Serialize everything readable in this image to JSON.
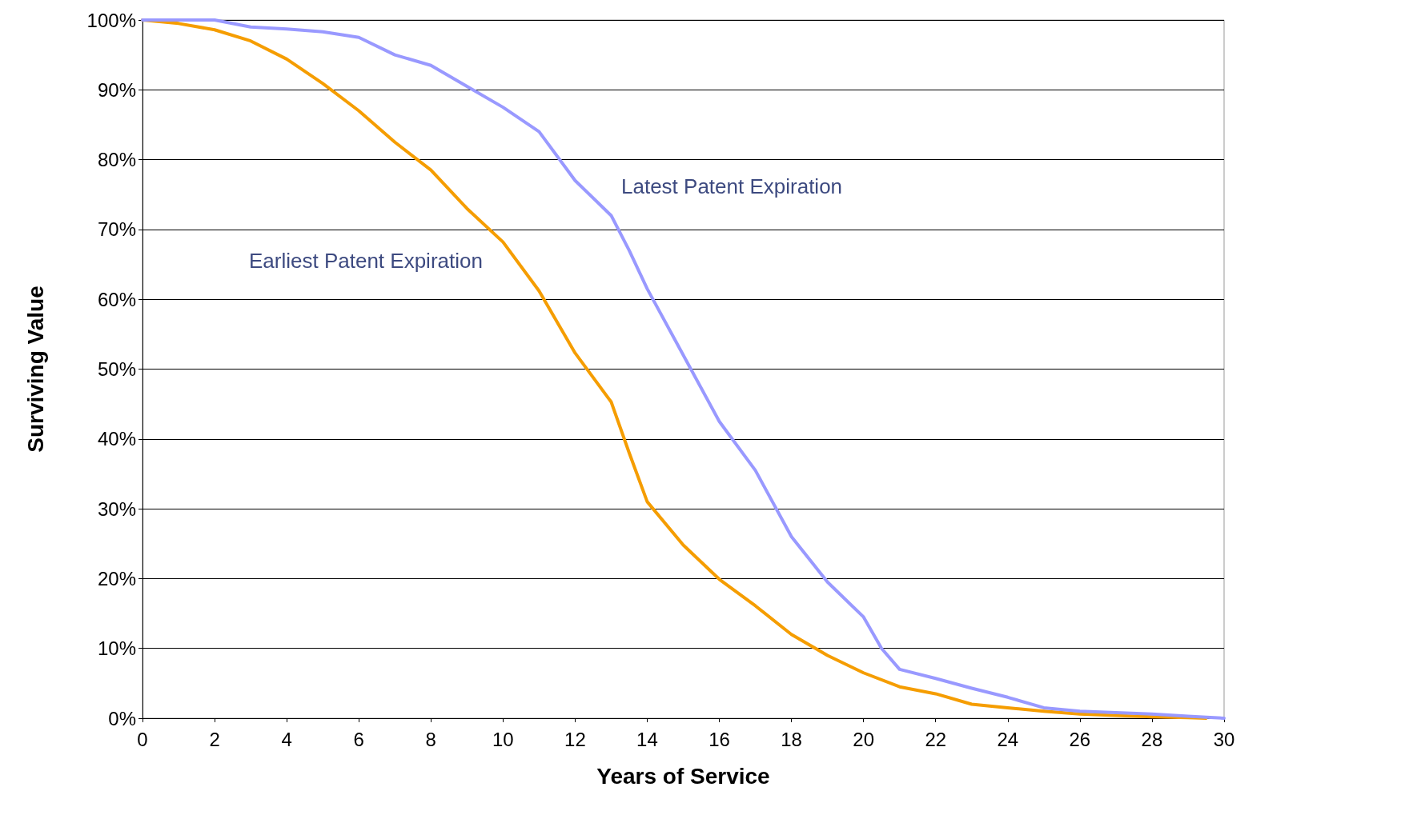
{
  "chart_data": {
    "type": "line",
    "xlabel": "Years of Service",
    "ylabel": "Surviving Value",
    "xlim": [
      0,
      30
    ],
    "xticks": [
      0,
      2,
      4,
      6,
      8,
      10,
      12,
      14,
      16,
      18,
      20,
      22,
      24,
      26,
      28,
      30
    ],
    "ylim": [
      0,
      100
    ],
    "yticks": [
      {
        "value": 0,
        "label": "0%"
      },
      {
        "value": 10,
        "label": "10%"
      },
      {
        "value": 20,
        "label": "20%"
      },
      {
        "value": 30,
        "label": "30%"
      },
      {
        "value": 40,
        "label": "40%"
      },
      {
        "value": 50,
        "label": "50%"
      },
      {
        "value": 60,
        "label": "60%"
      },
      {
        "value": 70,
        "label": "70%"
      },
      {
        "value": 80,
        "label": "80%"
      },
      {
        "value": 90,
        "label": "90%"
      },
      {
        "value": 100,
        "label": "100%"
      }
    ],
    "grid": "y",
    "legend": false,
    "marker": "none",
    "line_style": "solid",
    "series": [
      {
        "name": "Earliest Patent Expiration",
        "color": "#f59d00",
        "x": [
          0,
          1,
          2,
          3,
          4,
          5,
          6,
          7,
          8,
          9,
          10,
          11,
          12,
          13,
          13.5,
          14,
          15,
          16,
          17,
          18,
          19,
          20,
          21,
          22,
          23,
          24,
          25,
          26,
          27,
          28,
          29,
          29.5
        ],
        "values": [
          100,
          99.5,
          98.6,
          97,
          94.4,
          90.9,
          87,
          82.5,
          78.5,
          73,
          68.2,
          61.2,
          52.3,
          45.3,
          38,
          31,
          24.8,
          19.9,
          16.1,
          12,
          9,
          6.5,
          4.5,
          3.5,
          2,
          1.5,
          1,
          0.6,
          0.4,
          0.2,
          0.1,
          0
        ]
      },
      {
        "name": "Latest Patent Expiration",
        "color": "#9999ff",
        "x": [
          0,
          1,
          2,
          3,
          4,
          5,
          6,
          7,
          8,
          9,
          10,
          11,
          12,
          13,
          13.5,
          14,
          15,
          16,
          17,
          18,
          19,
          20,
          20.5,
          21,
          22,
          23,
          24,
          25,
          26,
          27,
          28,
          29,
          30
        ],
        "values": [
          100,
          100,
          100,
          99,
          98.7,
          98.3,
          97.5,
          95,
          93.5,
          90.5,
          87.5,
          84,
          77,
          72,
          67,
          61.5,
          52,
          42.5,
          35.5,
          26,
          19.5,
          14.5,
          10,
          7,
          5.7,
          4.3,
          3,
          1.5,
          1,
          0.8,
          0.6,
          0.3,
          0
        ]
      }
    ]
  }
}
